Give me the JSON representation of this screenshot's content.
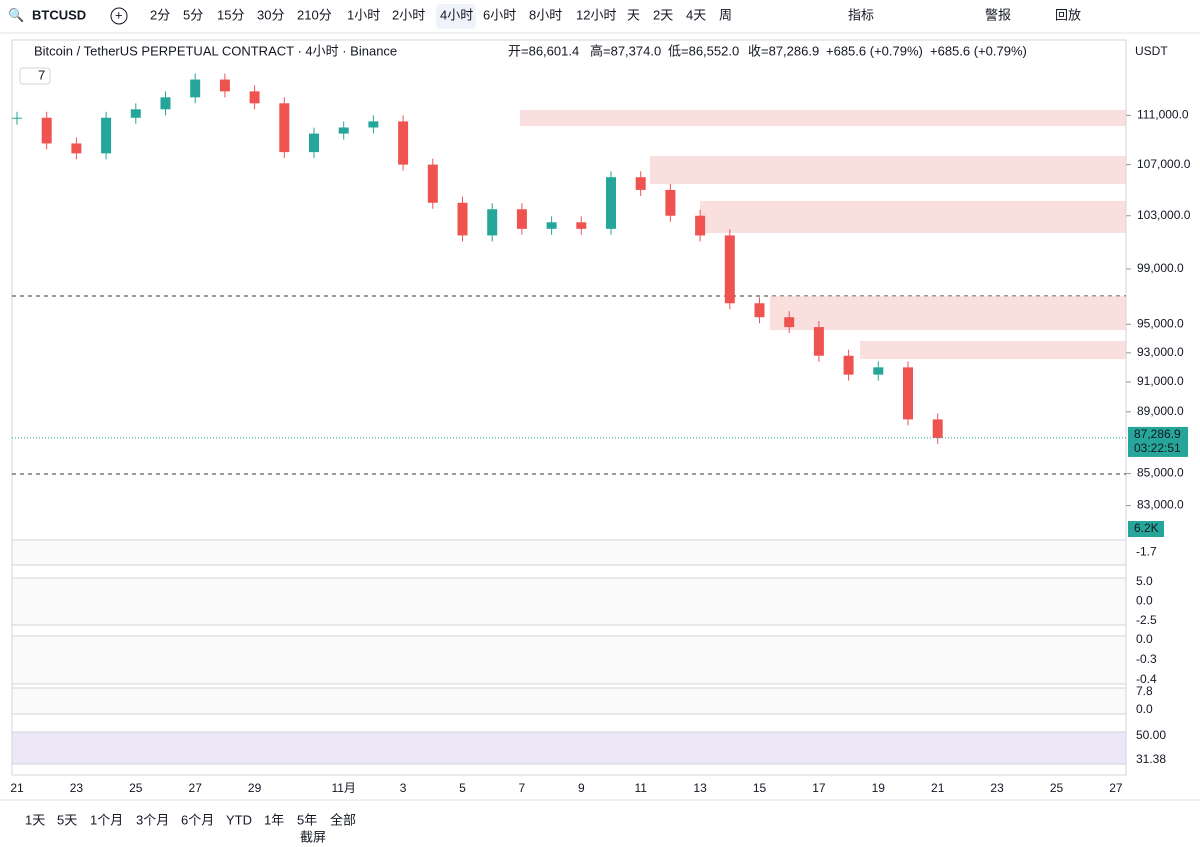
{
  "toolbar": {
    "symbol": "BTCUSD",
    "intervals": [
      "2分",
      "5分",
      "15分",
      "30分",
      "210分",
      "1小时",
      "2小时",
      "4小时",
      "6小时",
      "8小时",
      "12小时",
      "天",
      "2天",
      "4天",
      "周"
    ],
    "tools": [
      "指标",
      "警报",
      "回放"
    ]
  },
  "legend": {
    "title": "Bitcoin / TetherUS PERPETUAL CONTRACT · 4小时 · Binance",
    "open": "开=86,601.4",
    "high": "高=87,374.0",
    "low": "低=86,552.0",
    "close": "收=87,286.9",
    "change": "+685.6 (+0.79%)",
    "change2": "+685.6 (+0.79%)",
    "badge": "7"
  },
  "currency": "USDT",
  "price_label": {
    "price": "87,286.9",
    "countdown": "03:22:51"
  },
  "volume_label": "6.2K",
  "panes": [
    {
      "labels": [
        "-1.7"
      ]
    },
    {
      "labels": [
        "5.0",
        "0.0",
        "-2.5"
      ]
    },
    {
      "labels": [
        "0.0",
        "-0.3",
        "-0.4"
      ]
    },
    {
      "labels": [
        "7.8",
        "0.0"
      ]
    },
    {
      "labels": [
        "50.00",
        "31.38"
      ]
    }
  ],
  "chart_data": {
    "type": "candlestick",
    "log": true,
    "categories": [
      "21",
      null,
      "23",
      null,
      "25",
      null,
      "27",
      null,
      "29",
      null,
      null,
      "11月",
      null,
      "3",
      null,
      "5",
      null,
      "7",
      null,
      "9",
      null,
      "11",
      null,
      "13",
      null,
      "15",
      null,
      "17",
      null,
      "19",
      null,
      "21",
      null,
      "23",
      null,
      "25",
      null,
      "27"
    ],
    "values": [
      110800,
      108700,
      107900,
      110800,
      111500,
      112500,
      114000,
      113000,
      112000,
      108000,
      109500,
      110000,
      110500,
      107000,
      104000,
      101500,
      103500,
      102000,
      102500,
      102000,
      106000,
      105000,
      103000,
      101500,
      96500,
      95500,
      94800,
      92800,
      91500,
      92000,
      88500,
      87286.9,
      null,
      null,
      null,
      null,
      null,
      null
    ],
    "up_color": "#26a69a",
    "down_color": "#ef5350",
    "ylim": [
      81500,
      115500
    ],
    "yticks": [
      {
        "value": 111000,
        "label": "111,000.0"
      },
      {
        "value": 107000,
        "label": "107,000.0"
      },
      {
        "value": 103000,
        "label": "103,000.0"
      },
      {
        "value": 99000,
        "label": "99,000.0"
      },
      {
        "value": 95000,
        "label": "95,000.0"
      },
      {
        "value": 93000,
        "label": "93,000.0"
      },
      {
        "value": 91000,
        "label": "91,000.0"
      },
      {
        "value": 89000,
        "label": "89,000.0"
      },
      {
        "value": 85000,
        "label": "85,000.0"
      },
      {
        "value": 83000,
        "label": "83,000.0"
      }
    ]
  },
  "ranges": [
    "1天",
    "5天",
    "1个月",
    "3个月",
    "6个月",
    "YTD",
    "1年",
    "5年",
    "全部"
  ],
  "screenshot": "截屏"
}
